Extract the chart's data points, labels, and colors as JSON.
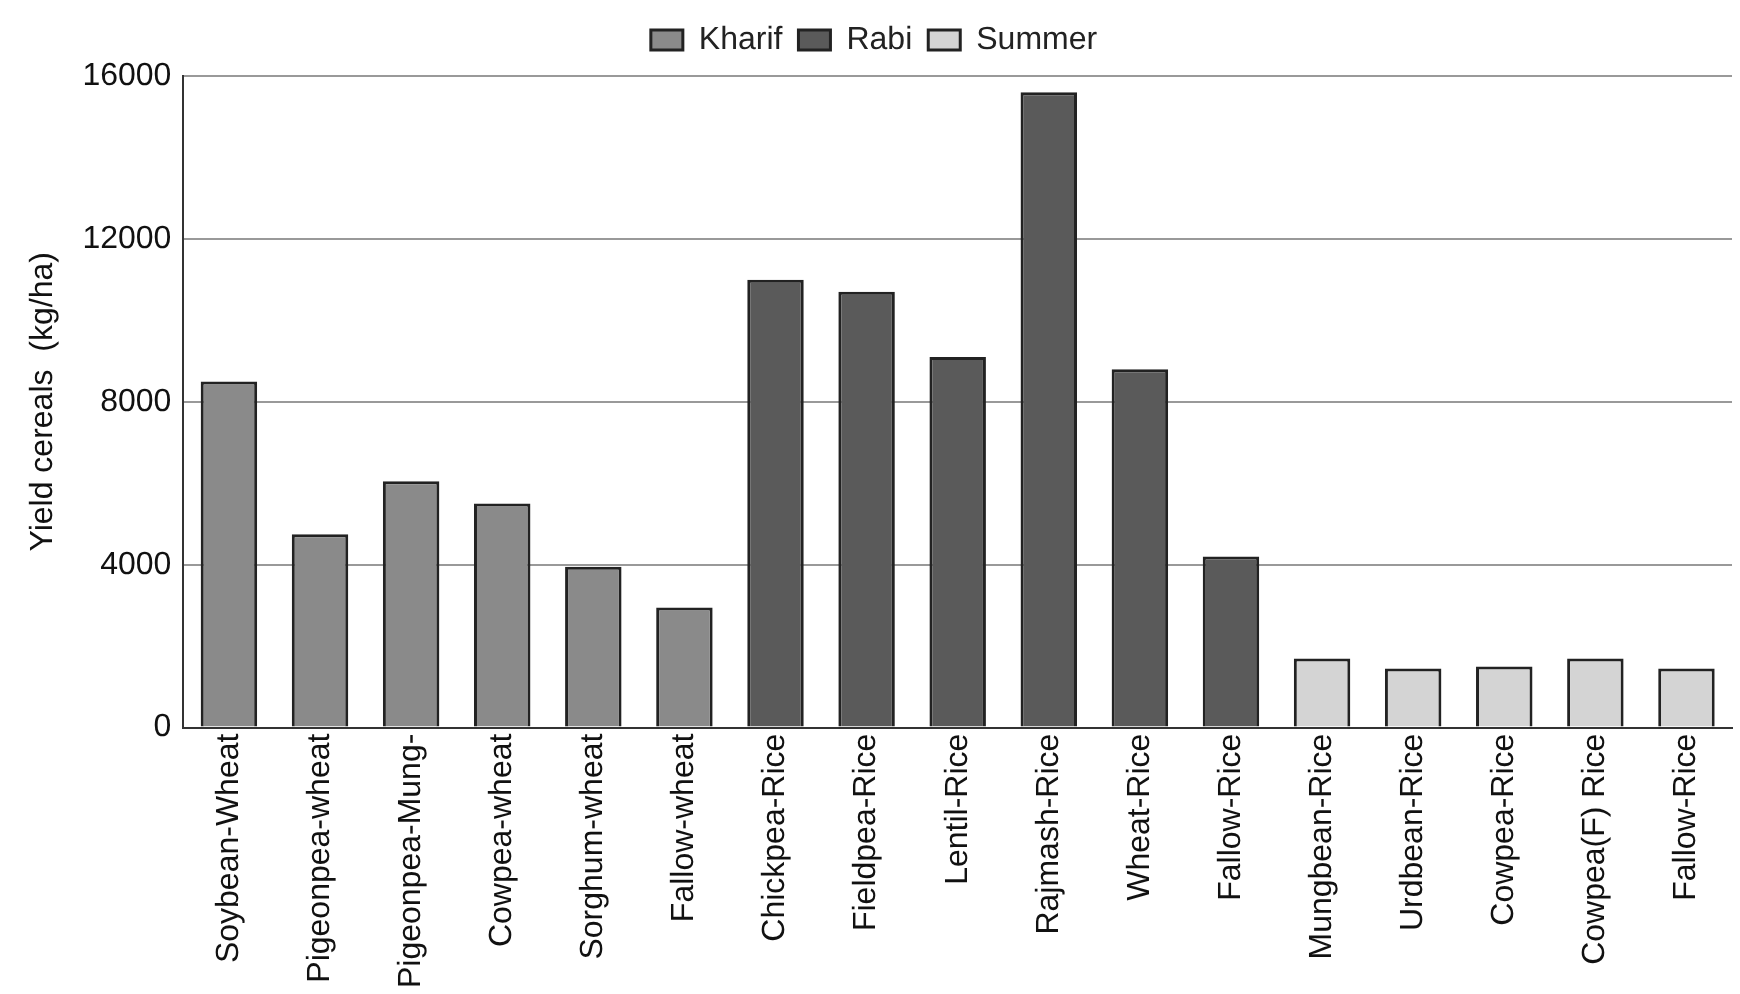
{
  "chart_data": {
    "type": "bar",
    "ylabel": "Yield cereals  (kg/ha)",
    "stacked": true,
    "categories": [
      "Soybean-Wheat",
      "Pigeonpea-wheat",
      "Pigeonpea-Mung-",
      "Cowpea-wheat",
      "Sorghum-wheat",
      "Fallow-wheat",
      "Chickpea-Rice",
      "Fieldpea-Rice",
      "Lentil-Rice",
      "Rajmash-Rice",
      "Wheat-Rice",
      "Fallow-Rice",
      "Mungbean-Rice",
      "Urdbean-Rice",
      "Cowpea-Rice",
      "Cowpea(F) Rice",
      "Fallow-Rice"
    ],
    "series": [
      {
        "name": "Kharif",
        "color": "#8a8a8a",
        "values": [
          8500,
          4750,
          6050,
          5500,
          3950,
          2950,
          null,
          null,
          null,
          null,
          null,
          null,
          null,
          null,
          null,
          null,
          null
        ]
      },
      {
        "name": "Rabi",
        "color": "#5a5a5a",
        "values": [
          null,
          null,
          null,
          null,
          null,
          null,
          11000,
          10700,
          9100,
          15600,
          8800,
          4200,
          null,
          null,
          null,
          null,
          null
        ]
      },
      {
        "name": "Summer",
        "color": "#d4d4d4",
        "values": [
          null,
          null,
          null,
          null,
          null,
          null,
          null,
          null,
          null,
          null,
          null,
          null,
          1700,
          1450,
          1500,
          1700,
          1450
        ]
      }
    ],
    "ylim": [
      0,
      16000
    ],
    "yticks": [
      0,
      4000,
      8000,
      12000,
      16000
    ],
    "grid": "y",
    "legend": "top"
  }
}
